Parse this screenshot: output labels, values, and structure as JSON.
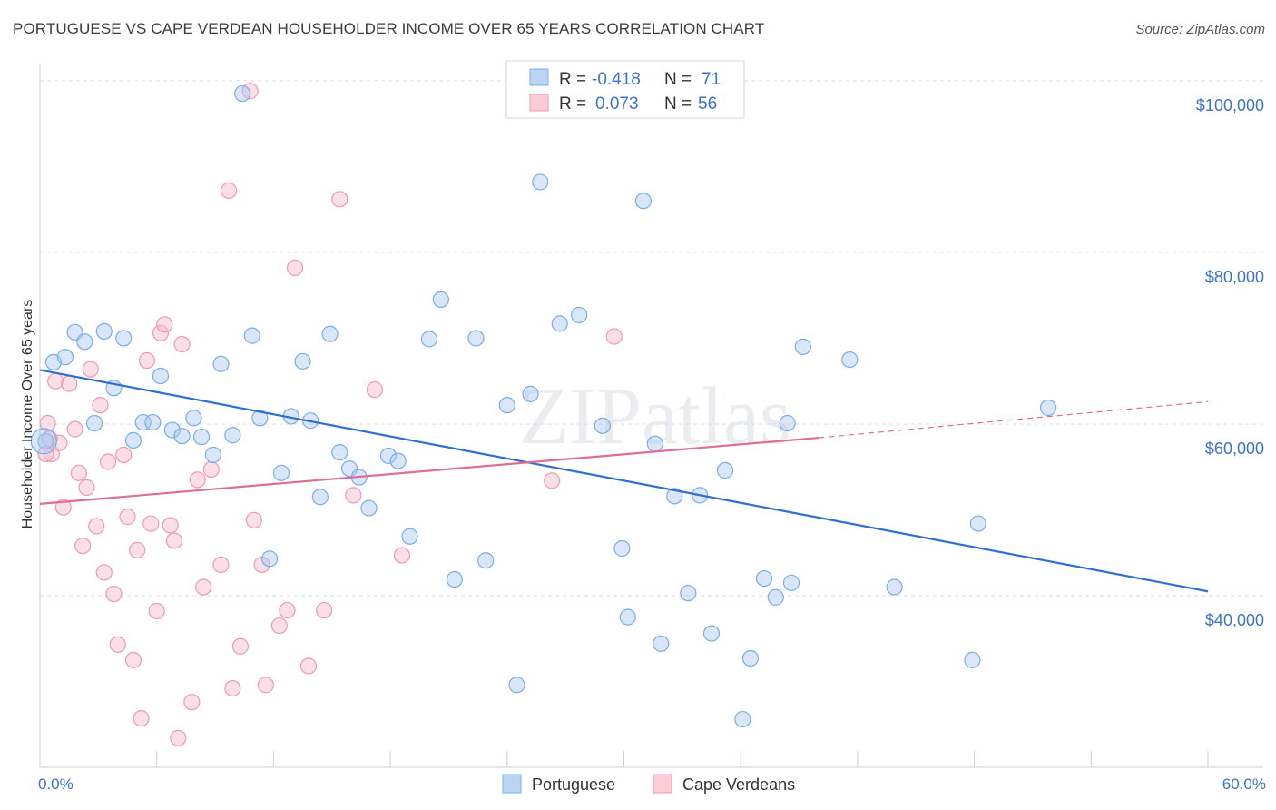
{
  "chart_data": {
    "type": "scatter",
    "title": "PORTUGUESE VS CAPE VERDEAN HOUSEHOLDER INCOME OVER 65 YEARS CORRELATION CHART",
    "source": "Source: ZipAtlas.com",
    "xlabel": "",
    "ylabel": "Householder Income Over 65 years",
    "xlim": [
      0,
      60
    ],
    "ylim": [
      20000,
      102000
    ],
    "x_tick_labels": [
      "0.0%",
      "60.0%"
    ],
    "y_ticks": [
      40000,
      60000,
      80000,
      100000
    ],
    "y_tick_labels": [
      "$40,000",
      "$60,000",
      "$80,000",
      "$100,000"
    ],
    "watermark": "ZIPatlas",
    "colors": {
      "portuguese": "#7aaee8",
      "cape_verdeans": "#ee9ab3",
      "blue_line": "#2f6fcf",
      "pink_line": "#e06d96"
    },
    "legend": [
      {
        "name": "Portuguese",
        "r_label": "R = ",
        "r_value": "-0.418",
        "n_label": "N = ",
        "n_value": "71"
      },
      {
        "name": "Cape Verdeans",
        "r_label": "R = ",
        "r_value": "0.073",
        "n_label": "N = ",
        "n_value": "56"
      }
    ],
    "series": [
      {
        "name": "Portuguese",
        "trend": {
          "x": [
            0,
            60
          ],
          "y": [
            66300,
            40500
          ],
          "style": "solid"
        },
        "points": [
          [
            0.3,
            58000
          ],
          [
            0.7,
            67200
          ],
          [
            1.3,
            67800
          ],
          [
            1.8,
            70700
          ],
          [
            2.3,
            69600
          ],
          [
            2.8,
            60100
          ],
          [
            3.3,
            70800
          ],
          [
            3.8,
            64200
          ],
          [
            4.3,
            70000
          ],
          [
            4.8,
            58100
          ],
          [
            5.3,
            60200
          ],
          [
            5.8,
            60200
          ],
          [
            6.2,
            65600
          ],
          [
            6.8,
            59300
          ],
          [
            7.3,
            58600
          ],
          [
            7.9,
            60700
          ],
          [
            8.3,
            58500
          ],
          [
            8.9,
            56400
          ],
          [
            9.3,
            67000
          ],
          [
            9.9,
            58700
          ],
          [
            10.4,
            98500
          ],
          [
            10.9,
            70300
          ],
          [
            11.3,
            60700
          ],
          [
            11.8,
            44300
          ],
          [
            12.4,
            54300
          ],
          [
            12.9,
            60900
          ],
          [
            13.5,
            67300
          ],
          [
            13.9,
            60400
          ],
          [
            14.4,
            51500
          ],
          [
            14.9,
            70500
          ],
          [
            15.4,
            56700
          ],
          [
            15.9,
            54800
          ],
          [
            16.4,
            53800
          ],
          [
            16.9,
            50200
          ],
          [
            17.9,
            56300
          ],
          [
            18.4,
            55700
          ],
          [
            19.0,
            46900
          ],
          [
            20.0,
            69900
          ],
          [
            20.6,
            74500
          ],
          [
            21.3,
            41900
          ],
          [
            22.4,
            70000
          ],
          [
            22.9,
            44100
          ],
          [
            24.0,
            62200
          ],
          [
            24.5,
            29600
          ],
          [
            25.2,
            63500
          ],
          [
            25.7,
            88200
          ],
          [
            26.7,
            71700
          ],
          [
            27.7,
            72700
          ],
          [
            28.9,
            59800
          ],
          [
            29.9,
            45500
          ],
          [
            30.2,
            37500
          ],
          [
            31.0,
            86000
          ],
          [
            31.6,
            57700
          ],
          [
            31.9,
            34400
          ],
          [
            32.6,
            51600
          ],
          [
            33.3,
            40300
          ],
          [
            33.9,
            51700
          ],
          [
            34.5,
            35600
          ],
          [
            35.2,
            54600
          ],
          [
            36.1,
            25600
          ],
          [
            36.5,
            32700
          ],
          [
            37.2,
            42000
          ],
          [
            37.8,
            39800
          ],
          [
            38.4,
            60100
          ],
          [
            38.6,
            41500
          ],
          [
            39.2,
            69000
          ],
          [
            41.6,
            67500
          ],
          [
            43.9,
            41000
          ],
          [
            47.9,
            32500
          ],
          [
            48.2,
            48400
          ],
          [
            51.8,
            61900
          ]
        ]
      },
      {
        "name": "Cape Verdeans",
        "trend": {
          "x": [
            0,
            40
          ],
          "y": [
            50700,
            58400
          ],
          "solid_until": 40,
          "dashed_to": {
            "x": 60,
            "y": 62600
          }
        },
        "points": [
          [
            0.4,
            60100
          ],
          [
            0.6,
            56500
          ],
          [
            0.8,
            65000
          ],
          [
            1.0,
            57800
          ],
          [
            1.2,
            50300
          ],
          [
            1.5,
            64700
          ],
          [
            1.8,
            59400
          ],
          [
            2.0,
            54300
          ],
          [
            2.2,
            45800
          ],
          [
            2.4,
            52600
          ],
          [
            2.6,
            66400
          ],
          [
            2.9,
            48100
          ],
          [
            3.1,
            62200
          ],
          [
            3.3,
            42700
          ],
          [
            3.5,
            55600
          ],
          [
            3.8,
            40200
          ],
          [
            4.0,
            34300
          ],
          [
            4.3,
            56400
          ],
          [
            4.5,
            49200
          ],
          [
            4.8,
            32500
          ],
          [
            5.0,
            45300
          ],
          [
            5.2,
            25700
          ],
          [
            5.5,
            67400
          ],
          [
            5.7,
            48400
          ],
          [
            6.0,
            38200
          ],
          [
            6.2,
            70600
          ],
          [
            6.4,
            71600
          ],
          [
            6.7,
            48200
          ],
          [
            6.9,
            46400
          ],
          [
            7.1,
            23400
          ],
          [
            7.3,
            69300
          ],
          [
            7.8,
            27600
          ],
          [
            8.1,
            53500
          ],
          [
            8.4,
            41000
          ],
          [
            8.8,
            54700
          ],
          [
            9.3,
            43600
          ],
          [
            9.7,
            87200
          ],
          [
            9.9,
            29200
          ],
          [
            10.3,
            34100
          ],
          [
            10.8,
            98800
          ],
          [
            11.0,
            48800
          ],
          [
            11.4,
            43600
          ],
          [
            11.6,
            29600
          ],
          [
            12.3,
            36500
          ],
          [
            12.7,
            38300
          ],
          [
            13.1,
            78200
          ],
          [
            13.8,
            31800
          ],
          [
            14.6,
            38300
          ],
          [
            15.4,
            86200
          ],
          [
            16.1,
            51700
          ],
          [
            17.2,
            64000
          ],
          [
            18.6,
            44700
          ],
          [
            26.3,
            53400
          ],
          [
            29.5,
            70200
          ],
          [
            0.3,
            56500
          ],
          [
            0.5,
            58300
          ]
        ]
      }
    ]
  }
}
